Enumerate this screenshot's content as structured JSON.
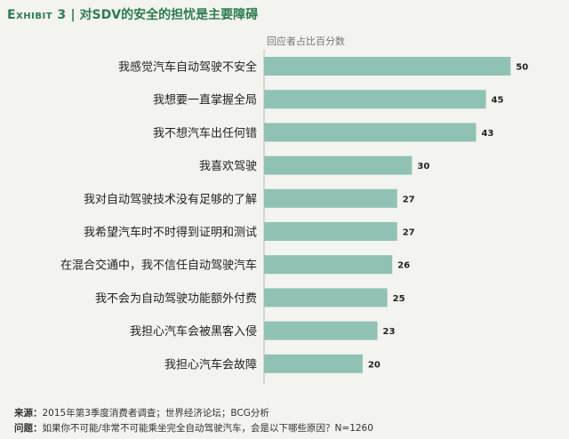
{
  "header": {
    "exhibit": "Exhibit 3",
    "separator": "|",
    "title": "对SDV的安全的担忧是主要障碍"
  },
  "chart_data": {
    "type": "bar",
    "orientation": "horizontal",
    "axis_caption": "回应者占比百分数",
    "categories": [
      "我感觉汽车自动驾驶不安全",
      "我想要一直掌握全局",
      "我不想汽车出任何错",
      "我喜欢驾驶",
      "我对自动驾驶技术没有足够的了解",
      "我希望汽车时不时得到证明和测试",
      "在混合交通中，我不信任自动驾驶汽车",
      "我不会为自动驾驶功能额外付费",
      "我担心汽车会被黑客入侵",
      "我担心汽车会故障"
    ],
    "values": [
      50,
      45,
      43,
      30,
      27,
      27,
      26,
      25,
      23,
      20
    ],
    "xlim": [
      0,
      55
    ],
    "bar_color": "#8fc2b5",
    "grid": false,
    "legend": "none"
  },
  "footer": {
    "source_label": "来源：",
    "source_text": "2015年第3季度消费者调查；世界经济论坛；BCG分析",
    "question_label": "问题：",
    "question_text": "如果你不可能/非常不可能乘坐完全自动驾驶汽车，会是以下哪些原因？N=1260"
  }
}
